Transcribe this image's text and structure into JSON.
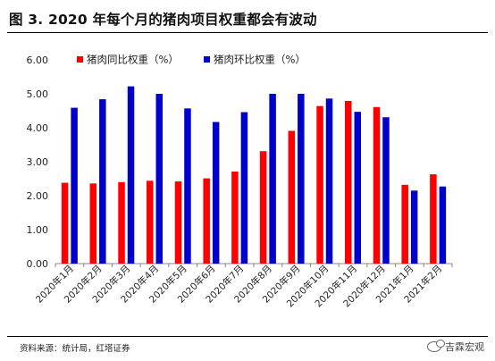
{
  "header": {
    "title": "图 3. 2020 年每个月的猪肉项目权重都会有波动"
  },
  "footer": {
    "source": "资料来源：统计局，红塔证券",
    "watermark": "吉霖宏观"
  },
  "chart_data": {
    "type": "bar",
    "categories": [
      "2020年1月",
      "2020年2月",
      "2020年3月",
      "2020年4月",
      "2020年5月",
      "2020年6月",
      "2020年7月",
      "2020年8月",
      "2020年9月",
      "2020年10月",
      "2020年11月",
      "2020年12月",
      "2021年1月",
      "2021年2月"
    ],
    "series": [
      {
        "name": "猪肉同比权重（%）",
        "color": "#ff0000",
        "values": [
          2.38,
          2.36,
          2.4,
          2.44,
          2.42,
          2.51,
          2.71,
          3.31,
          3.91,
          4.64,
          4.79,
          4.61,
          2.32,
          2.63
        ]
      },
      {
        "name": "猪肉环比权重（%）",
        "color": "#0000cc",
        "values": [
          4.59,
          4.84,
          5.22,
          5.0,
          4.57,
          4.17,
          4.46,
          5.0,
          5.0,
          4.86,
          4.47,
          4.31,
          2.15,
          2.27
        ]
      }
    ],
    "yticks": [
      "0.00",
      "1.00",
      "2.00",
      "3.00",
      "4.00",
      "5.00",
      "6.00"
    ],
    "ylim": [
      0,
      6
    ],
    "grid": false,
    "legend": "top-left"
  }
}
